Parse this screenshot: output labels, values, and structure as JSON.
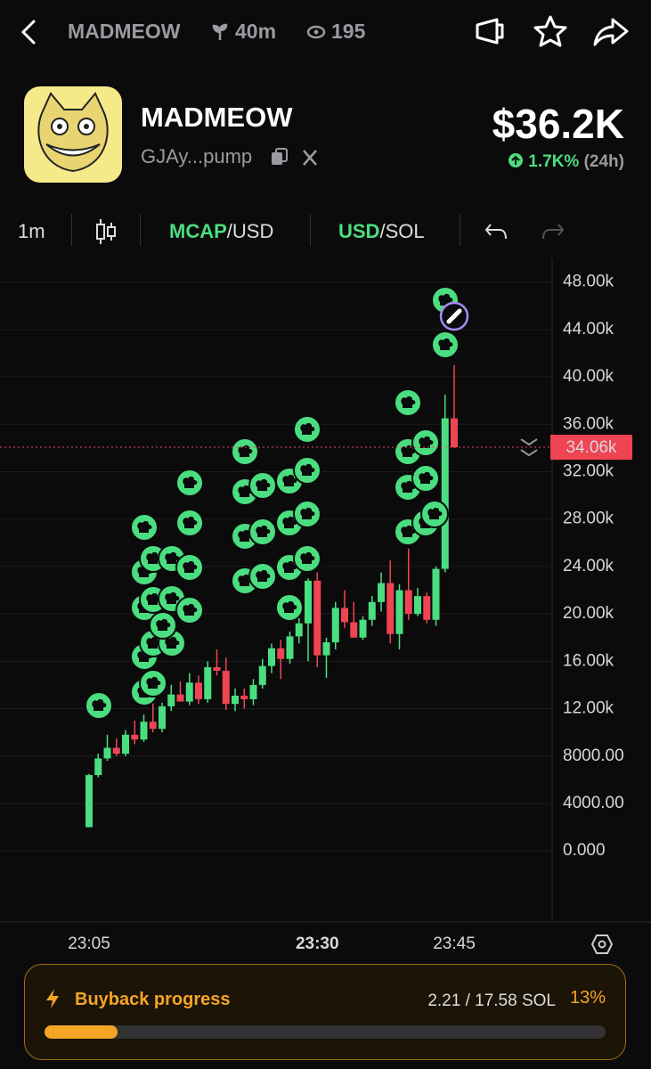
{
  "header": {
    "name": "MADMEOW",
    "age": "40m",
    "viewers": "195"
  },
  "token": {
    "name": "MADMEOW",
    "address": "GJAy...pump",
    "market_cap": "$36.2K",
    "change": "1.7K%",
    "period": "(24h)"
  },
  "toolbar": {
    "interval": "1m",
    "mcap": "MCAP",
    "mcap_suffix": "/USD",
    "usd": "USD",
    "usd_suffix": "/SOL"
  },
  "chart_data": {
    "type": "candlestick",
    "categories": [
      "23:05",
      null,
      null,
      null,
      null,
      null,
      null,
      null,
      null,
      null,
      null,
      null,
      null,
      null,
      null,
      null,
      null,
      null,
      null,
      null,
      null,
      null,
      null,
      null,
      null,
      "23:30",
      null,
      null,
      null,
      null,
      null,
      null,
      null,
      null,
      null,
      null,
      null,
      null,
      null,
      null,
      "23:45"
    ],
    "open": [
      2000,
      6400,
      7800,
      8700,
      8200,
      9800,
      9400,
      10900,
      10300,
      12200,
      13200,
      12600,
      14200,
      12800,
      15500,
      15200,
      12400,
      13100,
      12800,
      14000,
      15600,
      17100,
      16200,
      18100,
      19200,
      22800,
      16500,
      17600,
      20500,
      19300,
      18000,
      19500,
      21000,
      22600,
      18300,
      22000,
      20000,
      21500,
      19500,
      23800,
      36500
    ],
    "high": [
      6500,
      8200,
      9800,
      9500,
      10200,
      11000,
      11500,
      12600,
      12500,
      14000,
      14300,
      15000,
      14800,
      16000,
      17000,
      16300,
      13700,
      13700,
      14500,
      16200,
      17500,
      17800,
      18500,
      19800,
      23000,
      23500,
      18000,
      21000,
      22000,
      21000,
      19800,
      21500,
      23500,
      24500,
      22500,
      25500,
      22200,
      21800,
      24000,
      38500,
      41000
    ],
    "low": [
      2000,
      6200,
      7600,
      8000,
      8000,
      9000,
      9200,
      10000,
      10000,
      11800,
      12800,
      12300,
      12400,
      12500,
      14800,
      11900,
      11800,
      12000,
      12300,
      13700,
      15000,
      14500,
      15800,
      17500,
      16000,
      15500,
      14600,
      17000,
      18800,
      18000,
      17800,
      19000,
      20200,
      17500,
      17000,
      19500,
      19800,
      19200,
      19000,
      23500,
      34000
    ],
    "close": [
      6400,
      7800,
      8700,
      8200,
      9800,
      9400,
      10900,
      10300,
      12200,
      13200,
      12600,
      14200,
      12800,
      15500,
      15200,
      12400,
      13100,
      12800,
      14000,
      15600,
      17100,
      16200,
      18100,
      19200,
      22800,
      16500,
      17600,
      20500,
      19300,
      18000,
      19500,
      21000,
      22600,
      18300,
      22000,
      20000,
      21500,
      19500,
      23800,
      36500,
      34060
    ],
    "up_color": "#4ade80",
    "down_color": "#ef4452",
    "ylim": [
      -6000,
      50000
    ],
    "yticks": [
      {
        "value": 0,
        "label": "0.000"
      },
      {
        "value": 4000,
        "label": "4000.00"
      },
      {
        "value": 8000,
        "label": "8000.00"
      },
      {
        "value": 12000,
        "label": "12.00k"
      },
      {
        "value": 16000,
        "label": "16.00k"
      },
      {
        "value": 20000,
        "label": "20.00k"
      },
      {
        "value": 24000,
        "label": "24.00k"
      },
      {
        "value": 28000,
        "label": "28.00k"
      },
      {
        "value": 32000,
        "label": "32.00k"
      },
      {
        "value": 36000,
        "label": "36.00k"
      },
      {
        "value": 40000,
        "label": "40.00k"
      },
      {
        "value": 44000,
        "label": "44.00k"
      },
      {
        "value": 48000,
        "label": "48.00k"
      }
    ],
    "last_price": {
      "value": 34060,
      "label": "34.06k"
    },
    "grid": true
  },
  "buyback": {
    "title": "Buyback progress",
    "amount": "2.21 / 17.58 SOL",
    "percent": {
      "value": 13,
      "label": "13%"
    }
  }
}
